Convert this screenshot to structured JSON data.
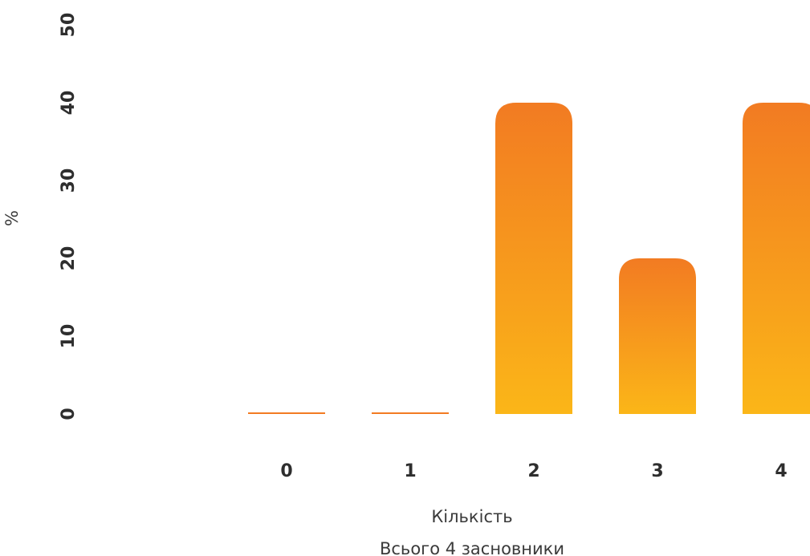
{
  "chart_data": {
    "type": "bar",
    "categories": [
      "0",
      "1",
      "2",
      "3",
      "4"
    ],
    "values": [
      0,
      0,
      40,
      20,
      40
    ],
    "ylabel": "%",
    "xlabel": "Кількість",
    "subtitle": "Всього 4 засновники",
    "ylim": [
      0,
      50
    ],
    "yticks": [
      0,
      10,
      20,
      30,
      40,
      50
    ],
    "grid": false,
    "legend": "none",
    "colors": {
      "bar_top": "#f27b22",
      "bar_bottom": "#fbb618",
      "text": "#2e2e2e"
    }
  }
}
